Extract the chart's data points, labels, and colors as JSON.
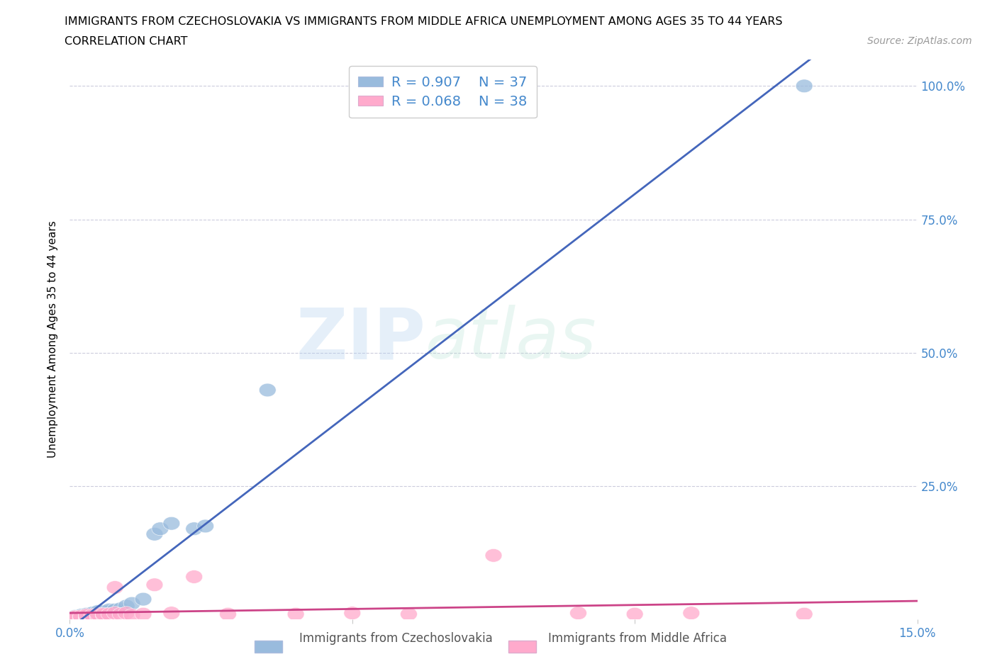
{
  "title_line1": "IMMIGRANTS FROM CZECHOSLOVAKIA VS IMMIGRANTS FROM MIDDLE AFRICA UNEMPLOYMENT AMONG AGES 35 TO 44 YEARS",
  "title_line2": "CORRELATION CHART",
  "source_text": "Source: ZipAtlas.com",
  "ylabel": "Unemployment Among Ages 35 to 44 years",
  "xlim": [
    0.0,
    0.15
  ],
  "ylim": [
    0.0,
    1.05
  ],
  "legend_R1": "R = 0.907",
  "legend_N1": "N = 37",
  "legend_R2": "R = 0.068",
  "legend_N2": "N = 38",
  "color_blue": "#99BBDD",
  "color_pink": "#FFAACC",
  "color_blue_line": "#4466BB",
  "color_pink_line": "#CC4488",
  "color_blue_text": "#4488CC",
  "background_color": "#FFFFFF",
  "grid_color": "#CCCCDD",
  "czech_x": [
    0.001,
    0.001,
    0.001,
    0.001,
    0.001,
    0.002,
    0.002,
    0.002,
    0.002,
    0.003,
    0.003,
    0.003,
    0.003,
    0.004,
    0.004,
    0.004,
    0.004,
    0.005,
    0.005,
    0.005,
    0.005,
    0.006,
    0.006,
    0.007,
    0.007,
    0.008,
    0.009,
    0.01,
    0.011,
    0.013,
    0.015,
    0.016,
    0.018,
    0.022,
    0.024,
    0.035,
    0.13
  ],
  "czech_y": [
    0.002,
    0.003,
    0.004,
    0.005,
    0.006,
    0.003,
    0.005,
    0.007,
    0.008,
    0.004,
    0.006,
    0.008,
    0.01,
    0.005,
    0.007,
    0.01,
    0.012,
    0.008,
    0.01,
    0.013,
    0.015,
    0.012,
    0.015,
    0.015,
    0.018,
    0.018,
    0.02,
    0.025,
    0.03,
    0.038,
    0.16,
    0.17,
    0.18,
    0.17,
    0.175,
    0.43,
    1.0
  ],
  "midafrica_x": [
    0.001,
    0.001,
    0.001,
    0.001,
    0.002,
    0.002,
    0.002,
    0.003,
    0.003,
    0.003,
    0.003,
    0.004,
    0.004,
    0.004,
    0.005,
    0.005,
    0.005,
    0.006,
    0.006,
    0.007,
    0.008,
    0.008,
    0.009,
    0.01,
    0.011,
    0.013,
    0.015,
    0.018,
    0.022,
    0.028,
    0.04,
    0.05,
    0.06,
    0.075,
    0.09,
    0.1,
    0.11,
    0.13
  ],
  "midafrica_y": [
    0.002,
    0.003,
    0.004,
    0.005,
    0.003,
    0.004,
    0.006,
    0.003,
    0.005,
    0.006,
    0.008,
    0.004,
    0.006,
    0.008,
    0.005,
    0.007,
    0.01,
    0.008,
    0.01,
    0.01,
    0.012,
    0.06,
    0.01,
    0.012,
    0.008,
    0.01,
    0.065,
    0.012,
    0.08,
    0.01,
    0.01,
    0.012,
    0.01,
    0.12,
    0.012,
    0.01,
    0.012,
    0.01
  ]
}
